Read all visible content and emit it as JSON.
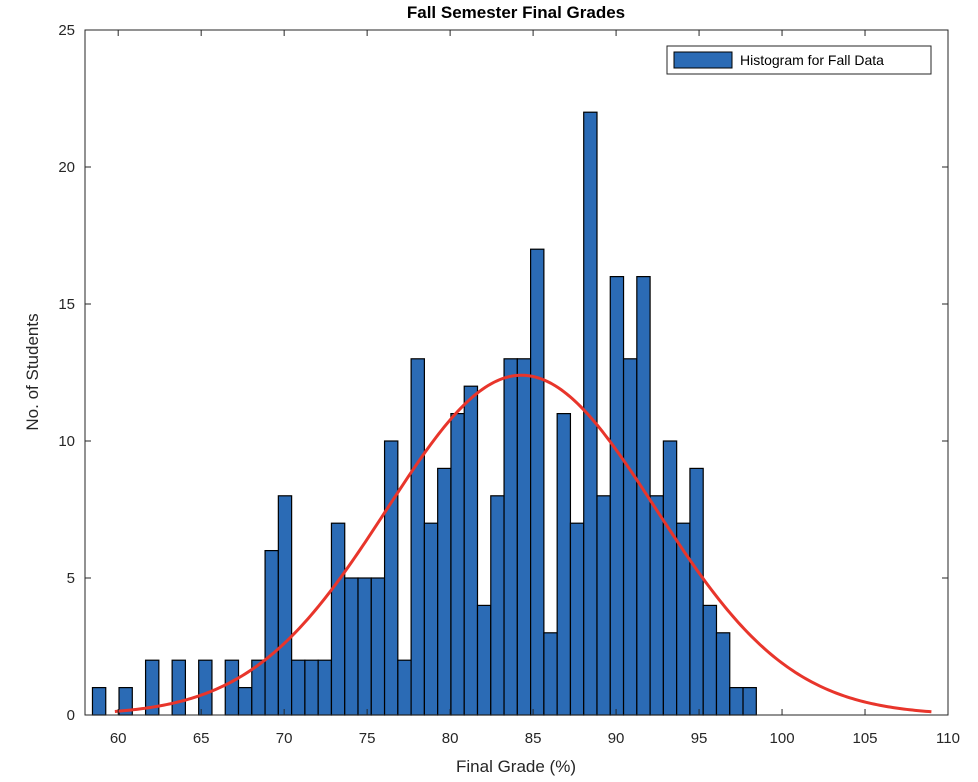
{
  "chart_data": {
    "type": "bar",
    "title": "Fall Semester Final Grades",
    "xlabel": "Final Grade (%)",
    "ylabel": "No. of Students",
    "xlim": [
      58,
      110
    ],
    "ylim": [
      0,
      25
    ],
    "xticks": [
      60,
      65,
      70,
      75,
      80,
      85,
      90,
      95,
      100,
      105,
      110
    ],
    "yticks": [
      0,
      5,
      10,
      15,
      20,
      25
    ],
    "grid": false,
    "legend_position": "top-right",
    "bin_width": 0.8,
    "bin_start": 58.45,
    "series": [
      {
        "name": "Histogram for Fall Data",
        "kind": "histogram",
        "color": "#2b6bb5",
        "values": [
          1,
          0,
          1,
          0,
          2,
          0,
          2,
          0,
          2,
          0,
          2,
          1,
          2,
          6,
          8,
          2,
          2,
          2,
          7,
          5,
          5,
          5,
          10,
          2,
          13,
          7,
          9,
          11,
          12,
          4,
          8,
          13,
          13,
          17,
          3,
          11,
          7,
          22,
          8,
          16,
          13,
          16,
          8,
          10,
          7,
          9,
          4,
          3,
          1,
          1
        ]
      },
      {
        "kind": "normal-fit",
        "color": "#e8352b",
        "mean": 84.3,
        "std": 8.1,
        "peak": 12.4,
        "x_range": [
          59.8,
          109
        ]
      }
    ]
  }
}
